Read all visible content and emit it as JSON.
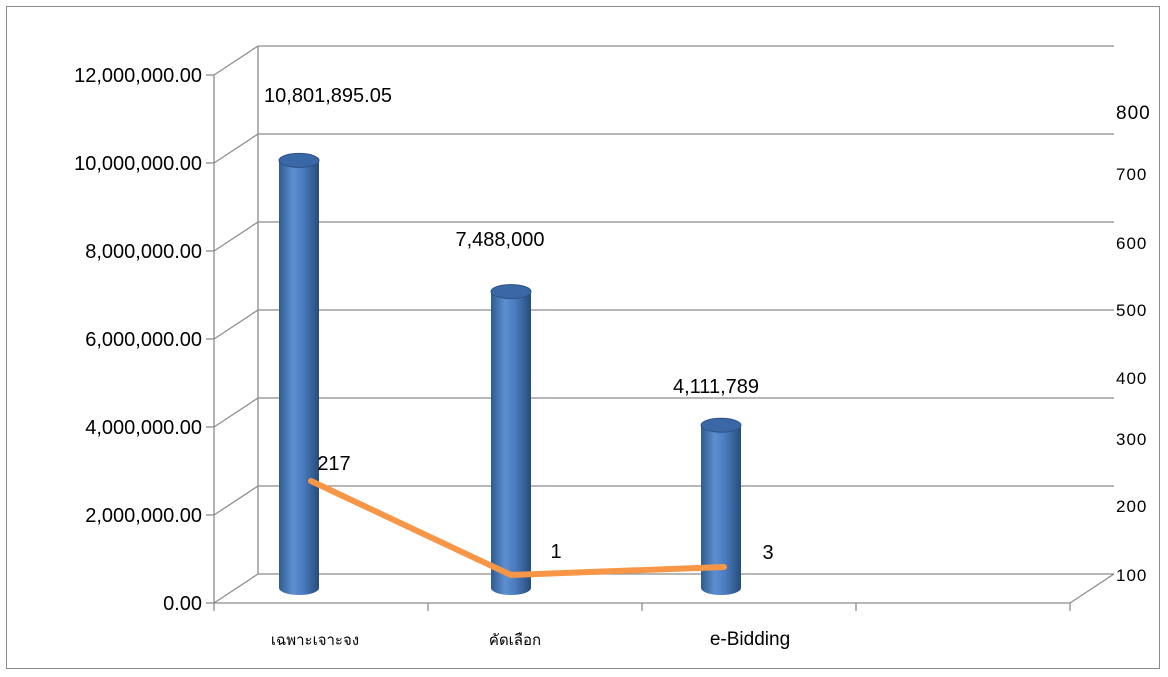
{
  "chart_data": {
    "type": "bar",
    "categories": [
      "เฉพาะเจาะจง",
      "คัดเลือก",
      "e-Bidding"
    ],
    "bar_series": {
      "values": [
        10801895.05,
        7488000,
        4111789
      ],
      "labels": [
        "10,801,895.05",
        "7,488,000",
        "4,111,789"
      ],
      "color": "#4F81BD"
    },
    "line_series": {
      "values": [
        217,
        1,
        3
      ],
      "labels": [
        "217",
        "1",
        "3"
      ],
      "color": "#F79646"
    },
    "ylim": [
      0,
      12000000
    ],
    "y_ticks": [
      "0.00",
      "2,000,000.00",
      "4,000,000.00",
      "6,000,000.00",
      "8,000,000.00",
      "10,000,000.00",
      "12,000,000.00"
    ],
    "y2lim": [
      0,
      800
    ],
    "y2_ticks": [
      "100",
      "200",
      "300",
      "400",
      "500",
      "600",
      "700",
      "800"
    ],
    "grid": true,
    "legend": "none"
  }
}
